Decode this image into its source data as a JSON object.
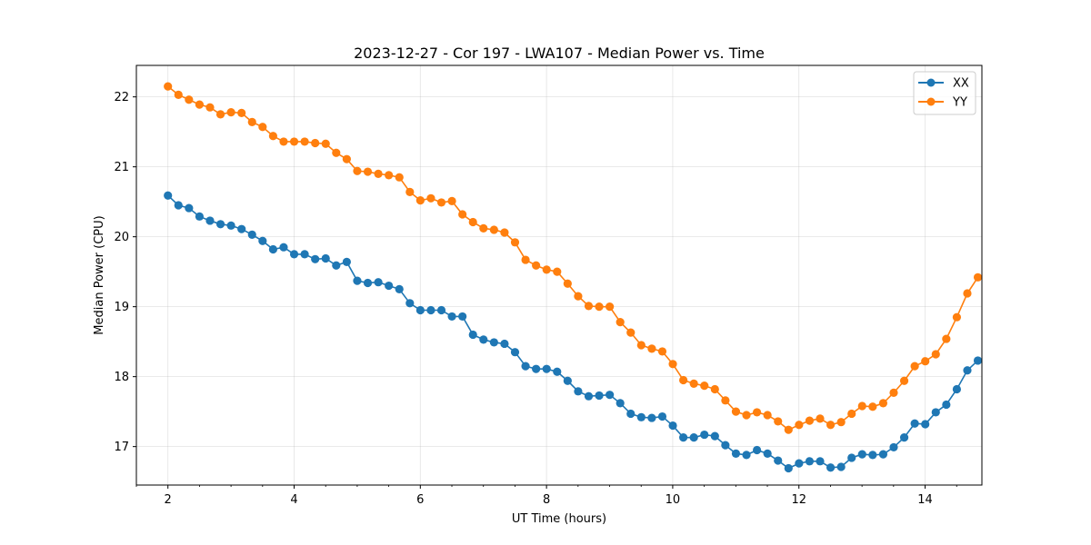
{
  "chart_data": {
    "type": "line",
    "title": "2023-12-27 - Cor 197 - LWA107 - Median Power vs. Time",
    "xlabel": "UT Time (hours)",
    "ylabel": "Median Power (CPU)",
    "xlim": [
      1.5,
      14.9
    ],
    "ylim": [
      16.45,
      22.45
    ],
    "xticks": [
      2,
      4,
      6,
      8,
      10,
      12,
      14
    ],
    "xtick_labels": [
      "2",
      "4",
      "6",
      "8",
      "10",
      "12",
      "14"
    ],
    "yticks": [
      17,
      18,
      19,
      20,
      21,
      22
    ],
    "ytick_labels": [
      "17",
      "18",
      "19",
      "20",
      "21",
      "22"
    ],
    "grid": true,
    "legend_position": "top-right",
    "x_start": 2.0,
    "x_step": 0.1667,
    "series": [
      {
        "name": "XX",
        "color": "#1f77b4",
        "values": [
          20.59,
          20.45,
          20.41,
          20.29,
          20.23,
          20.18,
          20.16,
          20.11,
          20.03,
          19.94,
          19.82,
          19.85,
          19.75,
          19.75,
          19.68,
          19.69,
          19.59,
          19.64,
          19.37,
          19.34,
          19.35,
          19.3,
          19.25,
          19.05,
          18.95,
          18.95,
          18.95,
          18.86,
          18.86,
          18.6,
          18.53,
          18.49,
          18.47,
          18.35,
          18.15,
          18.11,
          18.11,
          18.07,
          17.94,
          17.79,
          17.72,
          17.73,
          17.74,
          17.62,
          17.47,
          17.42,
          17.41,
          17.43,
          17.3,
          17.13,
          17.13,
          17.17,
          17.15,
          17.02,
          16.9,
          16.88,
          16.95,
          16.9,
          16.8,
          16.69,
          16.76,
          16.79,
          16.79,
          16.7,
          16.71,
          16.84,
          16.89,
          16.88,
          16.89,
          16.99,
          17.13,
          17.33,
          17.32,
          17.49,
          17.6,
          17.82,
          18.09,
          18.23
        ]
      },
      {
        "name": "YY",
        "color": "#ff7f0e",
        "values": [
          22.15,
          22.03,
          21.96,
          21.89,
          21.85,
          21.75,
          21.78,
          21.77,
          21.64,
          21.57,
          21.44,
          21.36,
          21.36,
          21.36,
          21.34,
          21.33,
          21.2,
          21.11,
          20.94,
          20.93,
          20.9,
          20.88,
          20.85,
          20.64,
          20.52,
          20.55,
          20.49,
          20.51,
          20.32,
          20.21,
          20.12,
          20.1,
          20.06,
          19.92,
          19.67,
          19.59,
          19.53,
          19.5,
          19.33,
          19.15,
          19.01,
          19.0,
          19.0,
          18.78,
          18.63,
          18.45,
          18.4,
          18.36,
          18.18,
          17.95,
          17.9,
          17.87,
          17.82,
          17.66,
          17.5,
          17.45,
          17.49,
          17.45,
          17.36,
          17.24,
          17.31,
          17.37,
          17.4,
          17.31,
          17.35,
          17.47,
          17.58,
          17.57,
          17.62,
          17.77,
          17.94,
          18.15,
          18.22,
          18.32,
          18.54,
          18.85,
          19.19,
          19.42
        ]
      }
    ]
  }
}
